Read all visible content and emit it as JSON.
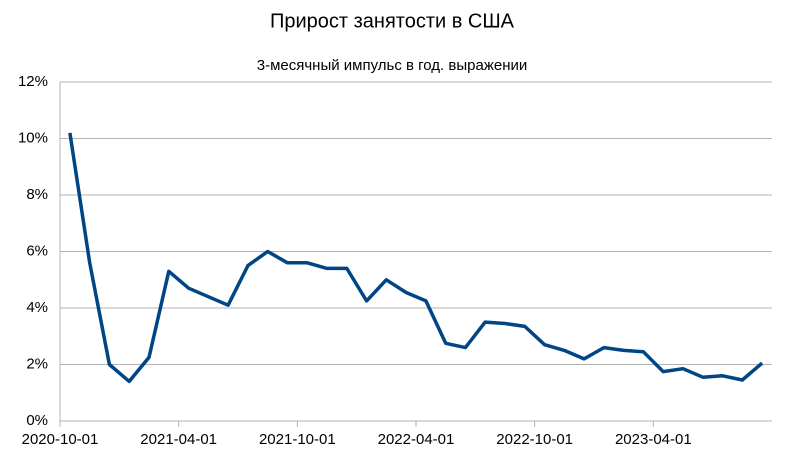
{
  "chart_data": {
    "type": "line",
    "title": "Прирост занятости в США",
    "subtitle": "3-месячный импульс в год. выражении",
    "categories": [
      "2020-10-01",
      null,
      null,
      null,
      null,
      null,
      "2021-04-01",
      null,
      null,
      null,
      null,
      null,
      "2021-10-01",
      null,
      null,
      null,
      null,
      null,
      "2022-04-01",
      null,
      null,
      null,
      null,
      null,
      "2022-10-01",
      null,
      null,
      null,
      null,
      null,
      "2023-04-01",
      null,
      null,
      null,
      null,
      null
    ],
    "series": [
      {
        "name": "Прирост занятости",
        "color": "#004586",
        "values": [
          10.2,
          5.6,
          2.0,
          1.4,
          2.25,
          5.3,
          4.7,
          4.4,
          4.1,
          5.5,
          6.0,
          5.6,
          5.6,
          5.4,
          5.4,
          4.25,
          5.0,
          4.55,
          4.25,
          2.75,
          2.6,
          3.5,
          3.45,
          3.35,
          2.7,
          2.5,
          2.2,
          2.6,
          2.5,
          2.45,
          1.75,
          1.85,
          1.55,
          1.6,
          1.45,
          2.05
        ]
      }
    ],
    "ylim": [
      0,
      12
    ],
    "yticks": [
      {
        "value": 0,
        "label": "0%"
      },
      {
        "value": 2,
        "label": "2%"
      },
      {
        "value": 4,
        "label": "4%"
      },
      {
        "value": 6,
        "label": "6%"
      },
      {
        "value": 8,
        "label": "8%"
      },
      {
        "value": 10,
        "label": "10%"
      },
      {
        "value": 12,
        "label": "12%"
      }
    ],
    "grid": true
  }
}
